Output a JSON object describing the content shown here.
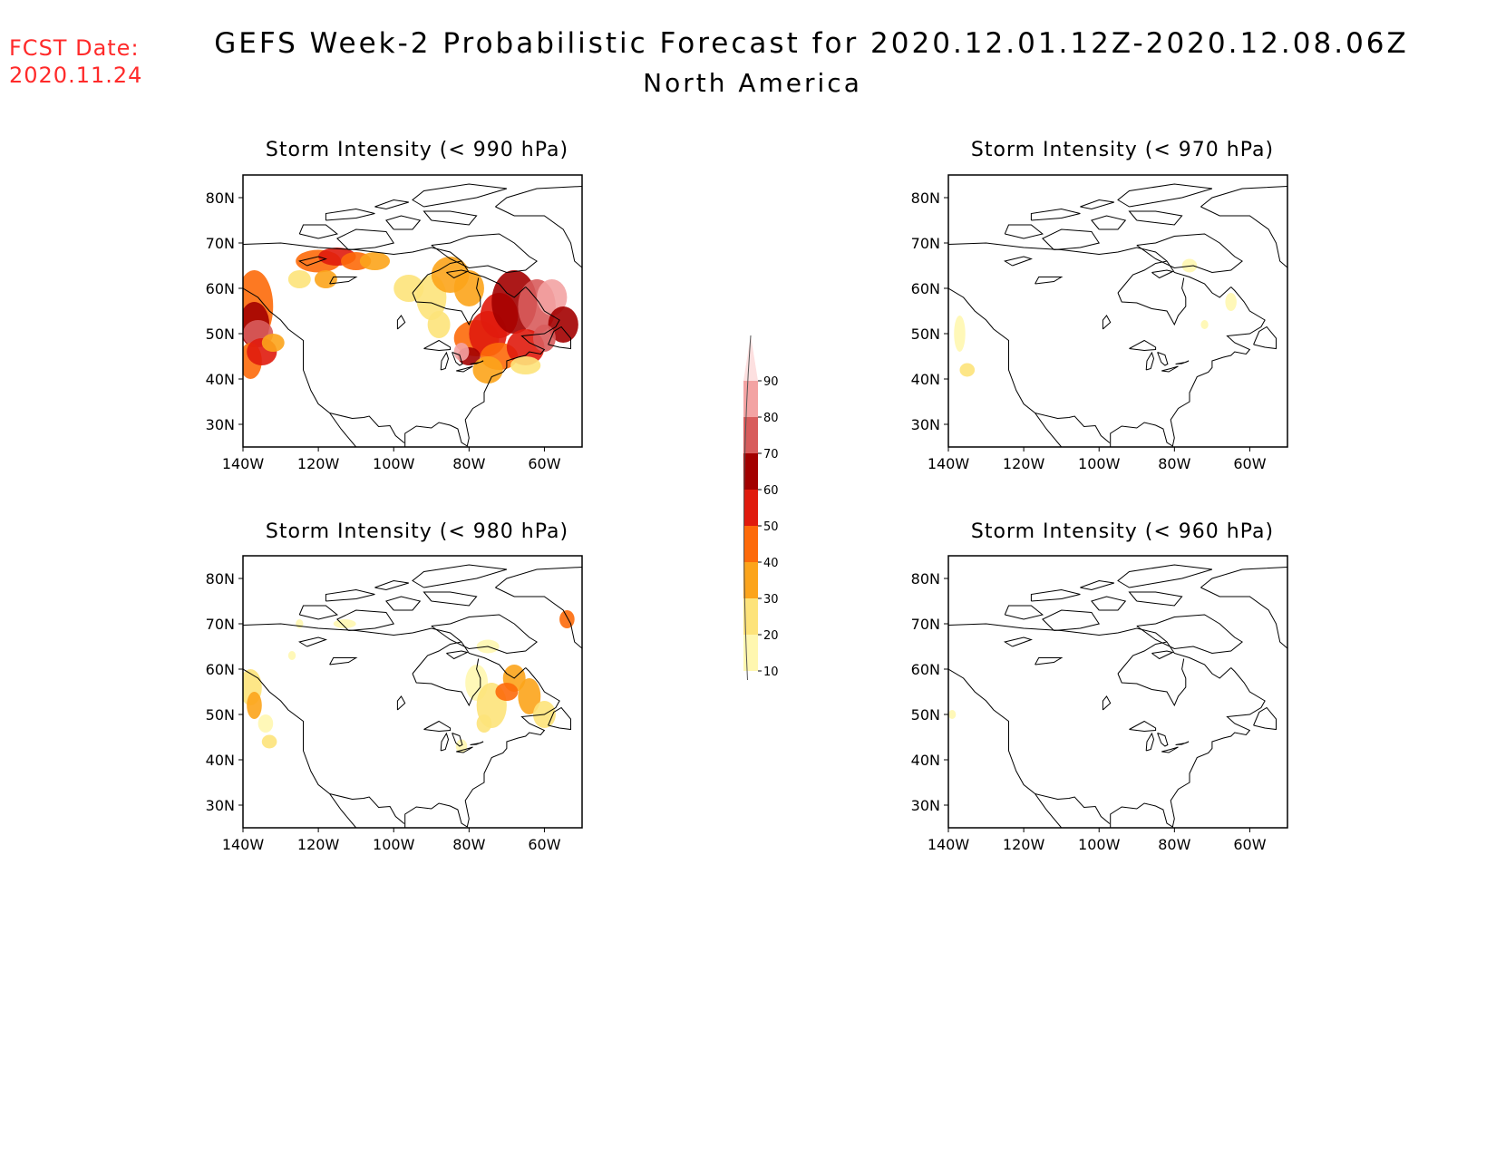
{
  "header": {
    "fcst_label": "FCST Date:",
    "fcst_date": "2020.11.24",
    "title": "GEFS Week-2 Probabilistic Forecast for 2020.12.01.12Z-2020.12.08.06Z",
    "subtitle": "North America"
  },
  "colors": {
    "fcst_text": "#ff2a2a",
    "bins": [
      "#fff7b0",
      "#fde37a",
      "#fca41b",
      "#fd6a0a",
      "#e01b0d",
      "#a30000",
      "#d85c5c",
      "#f3a3a3",
      "#fde0e0"
    ]
  },
  "chart_data": [
    {
      "type": "heatmap",
      "title": "Storm Intensity (< 990 hPa)",
      "lon_ticks": [
        "140W",
        "120W",
        "100W",
        "80W",
        "60W"
      ],
      "lat_ticks": [
        "80N",
        "70N",
        "60N",
        "50N",
        "40N",
        "30N"
      ],
      "extent": {
        "lon": [
          -140,
          -50
        ],
        "lat": [
          25,
          85
        ]
      },
      "high_prob_regions": [
        "Gulf of Alaska / Pacific Northwest coast",
        "Northern Canada 60-70N",
        "Great Lakes",
        "Eastern Canada / Labrador Sea"
      ]
    },
    {
      "type": "heatmap",
      "title": "Storm Intensity (< 970 hPa)",
      "lon_ticks": [
        "140W",
        "120W",
        "100W",
        "80W",
        "60W"
      ],
      "lat_ticks": [
        "80N",
        "70N",
        "60N",
        "50N",
        "40N",
        "30N"
      ],
      "extent": {
        "lon": [
          -140,
          -50
        ],
        "lat": [
          25,
          85
        ]
      },
      "high_prob_regions": [
        "Northeast Pacific (low)",
        "Labrador (low)"
      ]
    },
    {
      "type": "heatmap",
      "title": "Storm Intensity (< 980 hPa)",
      "lon_ticks": [
        "140W",
        "120W",
        "100W",
        "80W",
        "60W"
      ],
      "lat_ticks": [
        "80N",
        "70N",
        "60N",
        "50N",
        "40N",
        "30N"
      ],
      "extent": {
        "lon": [
          -140,
          -50
        ],
        "lat": [
          25,
          85
        ]
      },
      "high_prob_regions": [
        "Northeast Pacific",
        "Eastern Canada / Hudson Bay to Labrador"
      ]
    },
    {
      "type": "heatmap",
      "title": "Storm Intensity (< 960 hPa)",
      "lon_ticks": [
        "140W",
        "120W",
        "100W",
        "80W",
        "60W"
      ],
      "lat_ticks": [
        "80N",
        "70N",
        "60N",
        "50N",
        "40N",
        "30N"
      ],
      "extent": {
        "lon": [
          -140,
          -50
        ],
        "lat": [
          25,
          85
        ]
      },
      "high_prob_regions": []
    }
  ],
  "colorbar": {
    "labels": [
      "10",
      "20",
      "30",
      "40",
      "50",
      "60",
      "70",
      "80",
      "90"
    ]
  }
}
